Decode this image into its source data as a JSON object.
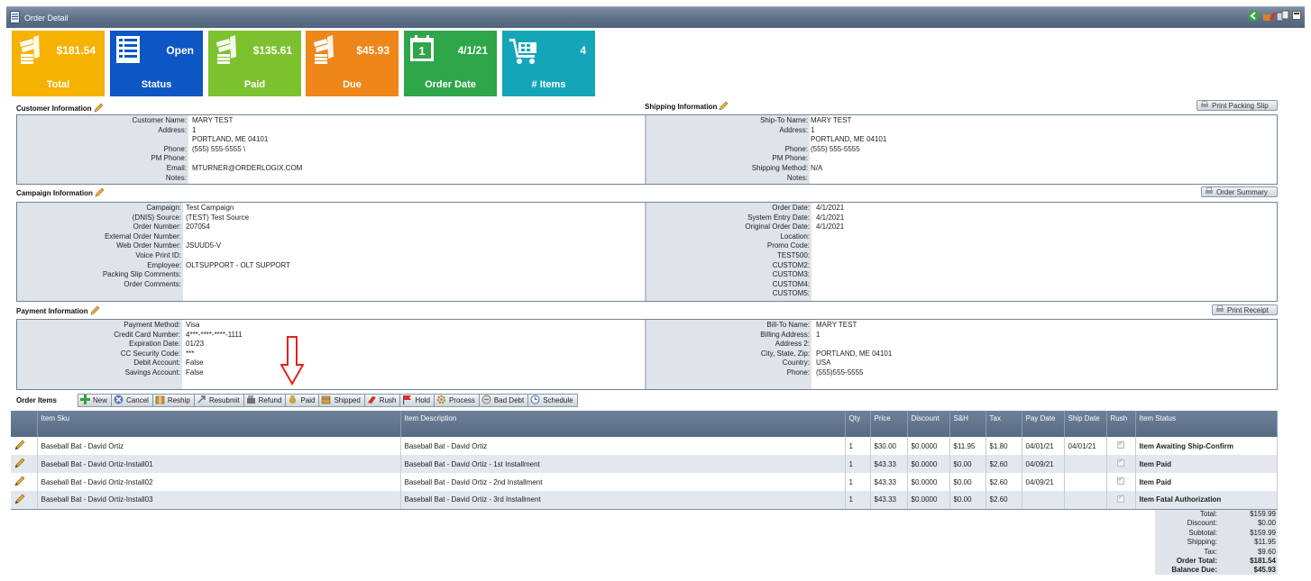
{
  "window": {
    "title": "Order Detail",
    "icons": [
      "document-icon",
      "back-icon",
      "tools-icon",
      "minimize-icon"
    ]
  },
  "tiles": [
    {
      "value": "$181.54",
      "label": "Total",
      "color": "#f5b200",
      "icon": "money-icon"
    },
    {
      "value": "Open",
      "label": "Status",
      "color": "#0c57c3",
      "icon": "list-icon"
    },
    {
      "value": "$135.61",
      "label": "Paid",
      "color": "#7cc22e",
      "icon": "money-icon"
    },
    {
      "value": "$45.93",
      "label": "Due",
      "color": "#ef8619",
      "icon": "money-icon"
    },
    {
      "value": "4/1/21",
      "label": "Order Date",
      "color": "#2fa649",
      "icon": "calendar-icon"
    },
    {
      "value": "4",
      "label": "# Items",
      "color": "#14a6b8",
      "icon": "cart-icon"
    }
  ],
  "customer": {
    "heading": "Customer Information",
    "fields": [
      {
        "label": "Customer Name:",
        "value": "MARY TEST"
      },
      {
        "label": "Address:",
        "value": "1"
      },
      {
        "label": "",
        "value": "PORTLAND, ME 04101"
      },
      {
        "label": "Phone:",
        "value": "(555) 555-5555 \\"
      },
      {
        "label": "PM Phone:",
        "value": ""
      },
      {
        "label": "Email:",
        "value": "MTURNER@ORDERLOGIX.COM"
      },
      {
        "label": "Notes:",
        "value": ""
      }
    ]
  },
  "shipping": {
    "heading": "Shipping Information",
    "button": "Print Packing Slip",
    "fields": [
      {
        "label": "Ship-To Name:",
        "value": "MARY TEST"
      },
      {
        "label": "Address:",
        "value": "1"
      },
      {
        "label": "",
        "value": "PORTLAND, ME 04101"
      },
      {
        "label": "Phone:",
        "value": "(555) 555-5555"
      },
      {
        "label": "PM Phone:",
        "value": ""
      },
      {
        "label": "Shipping Method:",
        "value": "N/A"
      },
      {
        "label": "Notes:",
        "value": ""
      }
    ]
  },
  "campaign": {
    "heading": "Campaign Information",
    "button": "Order Summary",
    "left": [
      {
        "label": "Campaign:",
        "value": "Test Campaign"
      },
      {
        "label": "(DNIS) Source:",
        "value": "(TEST) Test Source"
      },
      {
        "label": "Order Number:",
        "value": "207054"
      },
      {
        "label": "External Order Number:",
        "value": ""
      },
      {
        "label": "Web Order Number:",
        "value": "JSUUD5-V"
      },
      {
        "label": "Voice Print ID:",
        "value": ""
      },
      {
        "label": "Employee:",
        "value": "OLTSUPPORT - OLT SUPPORT"
      },
      {
        "label": "Packing Slip Comments:",
        "value": ""
      },
      {
        "label": "Order Comments:",
        "value": ""
      }
    ],
    "right": [
      {
        "label": "Order Date:",
        "value": "4/1/2021"
      },
      {
        "label": "System Entry Date:",
        "value": "4/1/2021"
      },
      {
        "label": "Original Order Date:",
        "value": "4/1/2021"
      },
      {
        "label": "Location:",
        "value": ""
      },
      {
        "label": "Promo Code:",
        "value": ""
      },
      {
        "label": "TEST500:",
        "value": ""
      },
      {
        "label": "CUSTOM2:",
        "value": ""
      },
      {
        "label": "CUSTOM3:",
        "value": ""
      },
      {
        "label": "CUSTOM4:",
        "value": ""
      },
      {
        "label": "CUSTOM5:",
        "value": ""
      }
    ]
  },
  "payment": {
    "heading": "Payment Information",
    "button": "Print Receipt",
    "left": [
      {
        "label": "Payment Method:",
        "value": "Visa"
      },
      {
        "label": "Credit Card Number:",
        "value": "4***-****-****-1111"
      },
      {
        "label": "Expiration Date:",
        "value": "01/23"
      },
      {
        "label": "CC Security Code:",
        "value": "***"
      },
      {
        "label": "Debit Account:",
        "value": "False"
      },
      {
        "label": "Savings Account:",
        "value": "False"
      }
    ],
    "right": [
      {
        "label": "Bill-To Name:",
        "value": "MARY TEST"
      },
      {
        "label": "Billing Address:",
        "value": "1"
      },
      {
        "label": "Address 2:",
        "value": ""
      },
      {
        "label": "City, State, Zip:",
        "value": "PORTLAND, ME 04101"
      },
      {
        "label": "Country:",
        "value": "USA"
      },
      {
        "label": "Phone:",
        "value": "(555)555-5555"
      }
    ]
  },
  "order_items": {
    "heading": "Order Items",
    "toolbar": [
      {
        "label": "New",
        "icon": "plus-icon"
      },
      {
        "label": "Cancel",
        "icon": "cancel-icon"
      },
      {
        "label": "Reship",
        "icon": "box-icon"
      },
      {
        "label": "Resubmit",
        "icon": "resubmit-icon"
      },
      {
        "label": "Refund",
        "icon": "register-icon"
      },
      {
        "label": "Paid",
        "icon": "money-bag-icon"
      },
      {
        "label": "Shipped",
        "icon": "package-icon"
      },
      {
        "label": "Rush",
        "icon": "rush-icon"
      },
      {
        "label": "Hold",
        "icon": "flag-icon"
      },
      {
        "label": "Process",
        "icon": "gear-icon"
      },
      {
        "label": "Bad Debt",
        "icon": "bad-debt-icon"
      },
      {
        "label": "Schedule",
        "icon": "clock-icon"
      }
    ],
    "columns": {
      "sku": "Item Sku",
      "desc": "Item Description",
      "qty": "Qty",
      "price": "Price",
      "discount": "Discount",
      "sh": "S&H",
      "tax": "Tax",
      "pay_date": "Pay Date",
      "ship_date": "Ship Date",
      "rush": "Rush",
      "status": "Item Status"
    },
    "rows": [
      {
        "sku": "Baseball Bat - David Ortiz",
        "desc": "Baseball Bat - David Ortiz",
        "qty": "1",
        "price": "$30.00",
        "discount": "$0.0000",
        "sh": "$11.95",
        "tax": "$1.80",
        "pay_date": "04/01/21",
        "ship_date": "04/01/21",
        "status": "Item Awaiting Ship-Confirm"
      },
      {
        "sku": "Baseball Bat - David Ortiz-Install01",
        "desc": "Baseball Bat - David Ortiz - 1st Installment",
        "qty": "1",
        "price": "$43.33",
        "discount": "$0.0000",
        "sh": "$0.00",
        "tax": "$2.60",
        "pay_date": "04/09/21",
        "ship_date": "",
        "status": "Item Paid"
      },
      {
        "sku": "Baseball Bat - David Ortiz-Install02",
        "desc": "Baseball Bat - David Ortiz - 2nd Installment",
        "qty": "1",
        "price": "$43.33",
        "discount": "$0.0000",
        "sh": "$0.00",
        "tax": "$2.60",
        "pay_date": "04/09/21",
        "ship_date": "",
        "status": "Item Paid"
      },
      {
        "sku": "Baseball Bat - David Ortiz-Install03",
        "desc": "Baseball Bat - David Ortiz - 3rd Installment",
        "qty": "1",
        "price": "$43.33",
        "discount": "$0.0000",
        "sh": "$0.00",
        "tax": "$2.60",
        "pay_date": "",
        "ship_date": "",
        "status": "Item Fatal Authorization"
      }
    ]
  },
  "totals": [
    {
      "label": "Total:",
      "value": "$159.99",
      "bold": false
    },
    {
      "label": "Discount:",
      "value": "$0.00",
      "bold": false
    },
    {
      "label": "Subtotal:",
      "value": "$159.99",
      "bold": false
    },
    {
      "label": "Shipping:",
      "value": "$11.95",
      "bold": false
    },
    {
      "label": "Tax:",
      "value": "$9.60",
      "bold": false
    },
    {
      "label": "Order Total:",
      "value": "$181.54",
      "bold": true
    },
    {
      "label": "Balance Due:",
      "value": "$45.93",
      "bold": true
    }
  ]
}
